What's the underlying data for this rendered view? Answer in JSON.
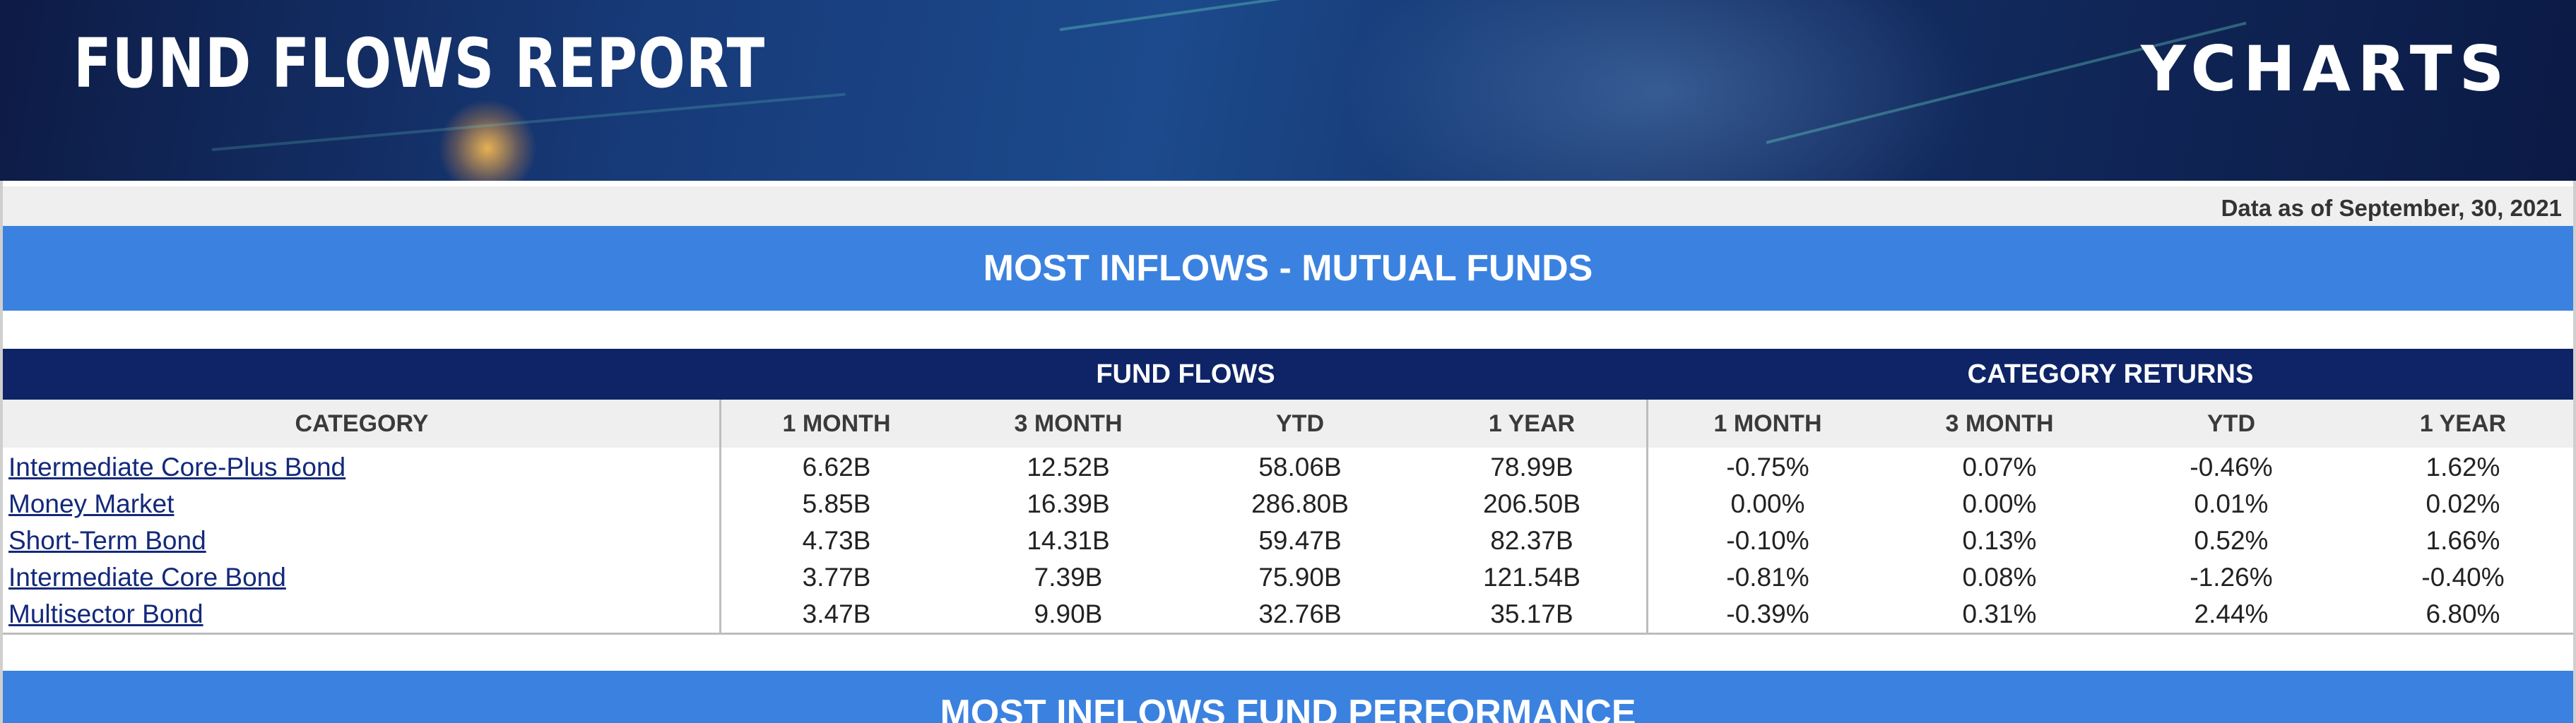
{
  "header": {
    "title": "FUND FLOWS REPORT",
    "logo_text": "YCHARTS"
  },
  "as_of": "Data as of September, 30, 2021",
  "section_inflows": {
    "title": "MOST INFLOWS - MUTUAL FUNDS",
    "groups": {
      "fund_flows": "FUND FLOWS",
      "category_returns": "CATEGORY RETURNS"
    },
    "columns": [
      "CATEGORY",
      "1 MONTH",
      "3 MONTH",
      "YTD",
      "1 YEAR",
      "1 MONTH",
      "3 MONTH",
      "YTD",
      "1 YEAR"
    ],
    "rows": [
      {
        "category": "Intermediate Core-Plus Bond",
        "values": [
          "6.62B",
          "12.52B",
          "58.06B",
          "78.99B",
          "-0.75%",
          "0.07%",
          "-0.46%",
          "1.62%"
        ]
      },
      {
        "category": "Money Market",
        "values": [
          "5.85B",
          "16.39B",
          "286.80B",
          "206.50B",
          "0.00%",
          "0.00%",
          "0.01%",
          "0.02%"
        ]
      },
      {
        "category": "Short-Term Bond",
        "values": [
          "4.73B",
          "14.31B",
          "59.47B",
          "82.37B",
          "-0.10%",
          "0.13%",
          "0.52%",
          "1.66%"
        ]
      },
      {
        "category": "Intermediate Core Bond",
        "values": [
          "3.77B",
          "7.39B",
          "75.90B",
          "121.54B",
          "-0.81%",
          "0.08%",
          "-1.26%",
          "-0.40%"
        ]
      },
      {
        "category": "Multisector Bond",
        "values": [
          "3.47B",
          "9.90B",
          "32.76B",
          "35.17B",
          "-0.39%",
          "0.31%",
          "2.44%",
          "6.80%"
        ]
      }
    ]
  },
  "section_performance": {
    "title": "MOST INFLOWS FUND PERFORMANCE"
  },
  "colors": {
    "banner": "#173a78",
    "section_bar": "#3b82e0",
    "group_bar": "#0e2467",
    "link": "#13297a"
  }
}
